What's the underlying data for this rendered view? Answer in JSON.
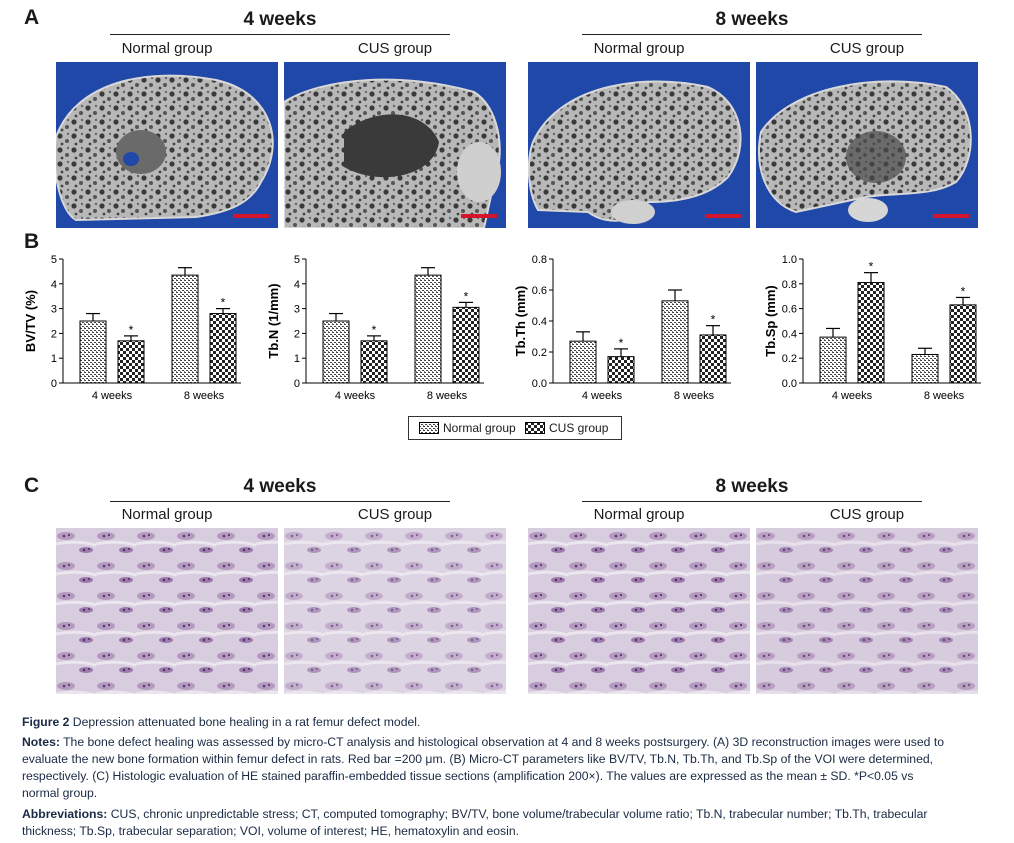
{
  "panels": {
    "a_label": "A",
    "b_label": "B",
    "c_label": "C"
  },
  "headings": {
    "week4": "4 weeks",
    "week8": "8 weeks",
    "normal": "Normal group",
    "cus": "CUS group"
  },
  "colors": {
    "ct_background": "#2048a8",
    "scale_bar": "#d4142a",
    "he_stain": "#cfc3d6"
  },
  "legend": {
    "normal": "Normal group",
    "cus": "CUS group"
  },
  "chart_data": [
    {
      "type": "bar",
      "ylabel": "BV/TV (%)",
      "categories": [
        "4 weeks",
        "8 weeks"
      ],
      "ylim": [
        0,
        5
      ],
      "yticks": [
        "0",
        "1",
        "2",
        "3",
        "4",
        "5"
      ],
      "series": [
        {
          "name": "Normal group",
          "values": [
            2.5,
            4.35
          ],
          "errors": [
            0.3,
            0.3
          ]
        },
        {
          "name": "CUS group",
          "values": [
            1.7,
            2.8
          ],
          "errors": [
            0.2,
            0.2
          ],
          "significance": [
            "*",
            "*"
          ]
        }
      ]
    },
    {
      "type": "bar",
      "ylabel": "Tb.N (1/mm)",
      "categories": [
        "4 weeks",
        "8 weeks"
      ],
      "ylim": [
        0,
        5
      ],
      "yticks": [
        "0",
        "1",
        "2",
        "3",
        "4",
        "5"
      ],
      "series": [
        {
          "name": "Normal group",
          "values": [
            2.5,
            4.35
          ],
          "errors": [
            0.3,
            0.3
          ]
        },
        {
          "name": "CUS group",
          "values": [
            1.7,
            3.05
          ],
          "errors": [
            0.2,
            0.2
          ],
          "significance": [
            "*",
            "*"
          ]
        }
      ]
    },
    {
      "type": "bar",
      "ylabel": "Tb.Th (mm)",
      "categories": [
        "4 weeks",
        "8 weeks"
      ],
      "ylim": [
        0,
        0.8
      ],
      "yticks": [
        "0.0",
        "0.2",
        "0.4",
        "0.6",
        "0.8"
      ],
      "series": [
        {
          "name": "Normal group",
          "values": [
            0.27,
            0.53
          ],
          "errors": [
            0.06,
            0.07
          ]
        },
        {
          "name": "CUS group",
          "values": [
            0.17,
            0.31
          ],
          "errors": [
            0.05,
            0.06
          ],
          "significance": [
            "*",
            "*"
          ]
        }
      ]
    },
    {
      "type": "bar",
      "ylabel": "Tb.Sp (mm)",
      "categories": [
        "4 weeks",
        "8 weeks"
      ],
      "ylim": [
        0,
        1.0
      ],
      "yticks": [
        "0.0",
        "0.2",
        "0.4",
        "0.6",
        "0.8",
        "1.0"
      ],
      "series": [
        {
          "name": "Normal group",
          "values": [
            0.37,
            0.23
          ],
          "errors": [
            0.07,
            0.05
          ]
        },
        {
          "name": "CUS group",
          "values": [
            0.81,
            0.63
          ],
          "errors": [
            0.08,
            0.06
          ],
          "significance": [
            "*",
            "*"
          ]
        }
      ]
    }
  ],
  "caption": {
    "figure_label": "Figure 2",
    "figure_title": "Depression attenuated bone healing in a rat femur defect model.",
    "notes_label": "Notes:",
    "notes_line1": "The bone defect healing was assessed by micro-CT analysis and histological observation at 4 and 8 weeks postsurgery. (A) 3D reconstruction images were used to",
    "notes_line2": "evaluate the new bone formation within femur defect in rats. Red bar =200 μm. (B) Micro-CT parameters like BV/TV, Tb.N, Tb.Th, and Tb.Sp of the VOI were determined,",
    "notes_line3": "respectively. (C) Histologic evaluation of HE stained paraffin-embedded tissue sections (amplification 200×). The values are expressed as the mean ± SD. *P<0.05 vs",
    "notes_line4": "normal group.",
    "abbrev_label": "Abbreviations:",
    "abbrev_line1": "CUS, chronic unpredictable stress; CT, computed tomography; BV/TV, bone volume/trabecular volume ratio; Tb.N, trabecular number; Tb.Th, trabecular",
    "abbrev_line2": "thickness; Tb.Sp, trabecular separation; VOI, volume of interest; HE, hematoxylin and eosin."
  }
}
